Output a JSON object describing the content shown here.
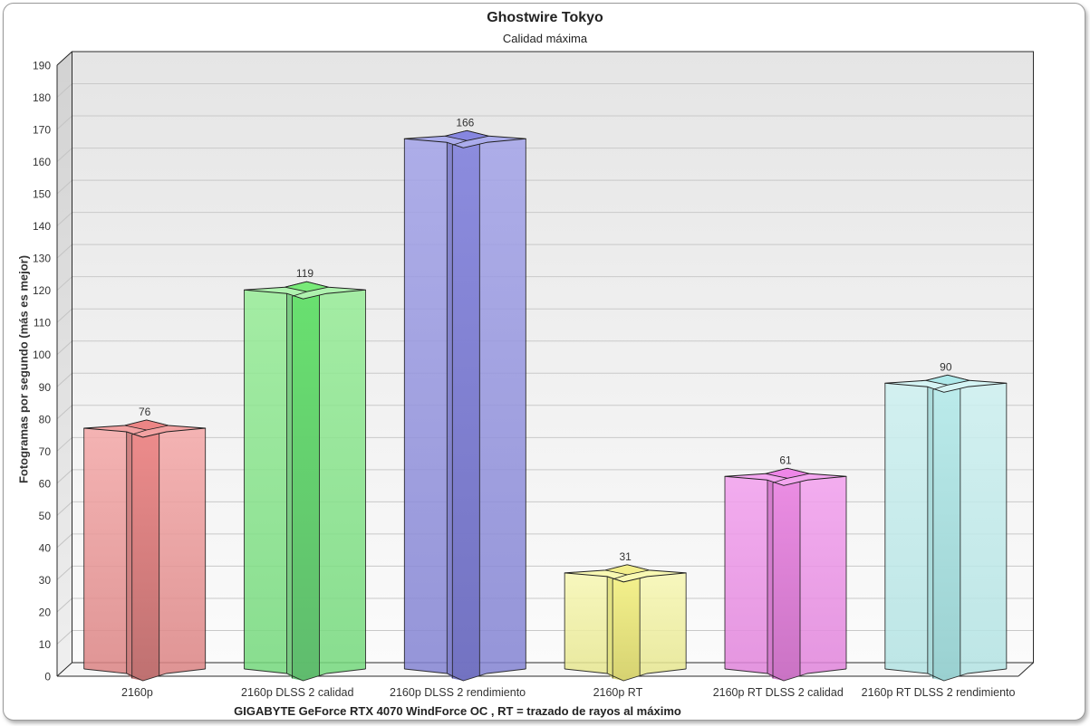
{
  "card": {
    "title": "Ghostwire Tokyo",
    "subtitle": "Calidad máxima"
  },
  "chart_data": {
    "type": "bar",
    "title": "Ghostwire Tokyo",
    "subtitle": "Calidad máxima",
    "categories": [
      "2160p",
      "2160p DLSS 2 calidad",
      "2160p DLSS 2 rendimiento",
      "2160p RT",
      "2160p RT DLSS 2 calidad",
      "2160p RT DLSS 2 rendimiento"
    ],
    "values": [
      76,
      119,
      166,
      31,
      61,
      90
    ],
    "xlabel": "GIGABYTE GeForce RTX 4070 WindForce OC , RT = trazado de rayos al máximo",
    "ylabel": "Fotogramas por segundo (más es mejor)",
    "ylim": [
      0,
      190
    ],
    "ytick_step": 10,
    "grid": true,
    "legend": "none",
    "bar_style": "3d-star-prism",
    "text_color": "#333333",
    "bar_colors": [
      {
        "name": "red",
        "bodyTop": "#f4a8a8",
        "bodyBottom": "#da8282",
        "medium": "#c97b7b",
        "columnTop": "#ec8888",
        "columnBottom": "#bc6e6e",
        "capLight": "#f2a2a2",
        "capBright": "#ec8585"
      },
      {
        "name": "green",
        "bodyTop": "#97ec97",
        "bodyBottom": "#74d87c",
        "medium": "#76c680",
        "columnTop": "#64df6b",
        "columnBottom": "#5cb96b",
        "capLight": "#aff2af",
        "capBright": "#79ea79"
      },
      {
        "name": "blue",
        "bodyTop": "#a3a3e8",
        "bodyBottom": "#8383d2",
        "medium": "#7e7ec8",
        "columnTop": "#8989dd",
        "columnBottom": "#7070c0",
        "capLight": "#abacec",
        "capBright": "#8686e0"
      },
      {
        "name": "yellow",
        "bodyTop": "#f7f7b3",
        "bodyBottom": "#e5e58d",
        "medium": "#dfdf7e",
        "columnTop": "#f3f088",
        "columnBottom": "#d5d16e",
        "capLight": "#f8f8b2",
        "capBright": "#f2ee8b"
      },
      {
        "name": "magenta",
        "bodyTop": "#f2a0ee",
        "bodyBottom": "#e083da",
        "medium": "#d078ca",
        "columnTop": "#ea8ae2",
        "columnBottom": "#c870c2",
        "capLight": "#f3a6ef",
        "capBright": "#ee86e8"
      },
      {
        "name": "cyan",
        "bodyTop": "#cdf0f0",
        "bodyBottom": "#b2e2e2",
        "medium": "#a6d8d8",
        "columnTop": "#b9eaea",
        "columnBottom": "#97cfcf",
        "capLight": "#d5f4f4",
        "capBright": "#aee9ea"
      }
    ],
    "wall_colors": {
      "back_top": "#e5e5e5",
      "back_bottom": "#fbfbfb",
      "side_top": "#d2d2d2",
      "side_bottom": "#efefef",
      "floor": "#f6f6f6",
      "grid": "#c9c9c9",
      "grid_side": "#c4c4c4",
      "frame": "#2b2b2b"
    }
  }
}
